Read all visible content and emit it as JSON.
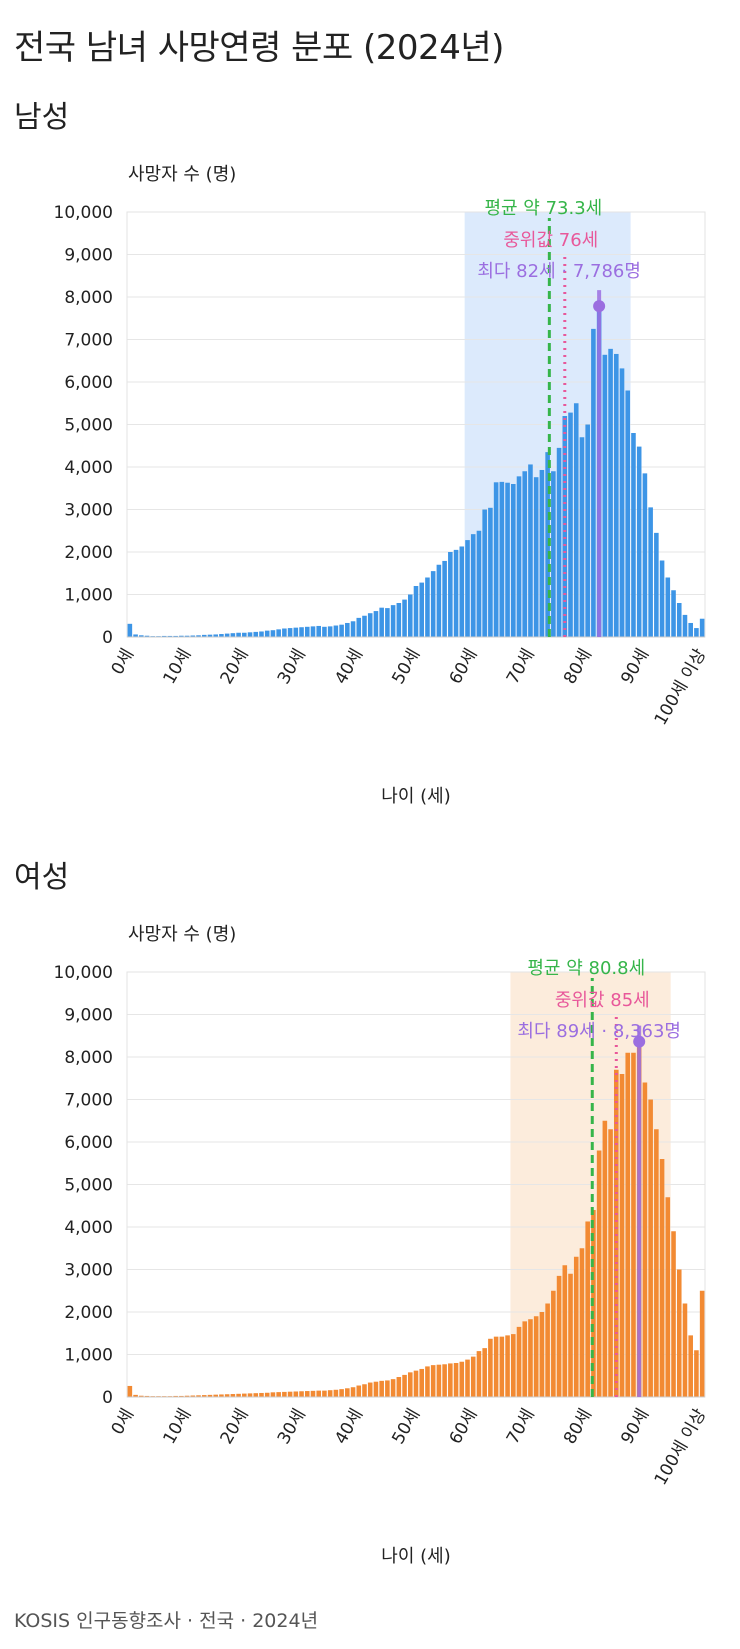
{
  "page": {
    "title": "전국 남녀 사망연령 분포 (2024년)",
    "footer": "KOSIS 인구동향조사 · 전국 · 2024년"
  },
  "chart_data": [
    {
      "id": "male",
      "type": "bar",
      "title": "남성",
      "xlabel": "나이 (세)",
      "ylabel": "사망자 수 (명)",
      "ylim": [
        0,
        10000
      ],
      "yticks": [
        0,
        1000,
        2000,
        3000,
        4000,
        5000,
        6000,
        7000,
        8000,
        9000,
        10000
      ],
      "ytick_labels": [
        "0",
        "1,000",
        "2,000",
        "3,000",
        "4,000",
        "5,000",
        "6,000",
        "7,000",
        "8,000",
        "9,000",
        "10,000"
      ],
      "xtick_positions": [
        0,
        10,
        20,
        30,
        40,
        50,
        60,
        70,
        80,
        90,
        100
      ],
      "xtick_labels": [
        "0세",
        "10세",
        "20세",
        "30세",
        "40세",
        "50세",
        "60세",
        "70세",
        "80세",
        "90세",
        "100세 이상"
      ],
      "grid": true,
      "bar_color": "#3d95e6",
      "highlight_band": {
        "from": 59,
        "to": 88,
        "color": "#dceafc"
      },
      "values": [
        310,
        60,
        40,
        30,
        20,
        20,
        25,
        25,
        25,
        30,
        30,
        35,
        40,
        50,
        55,
        60,
        70,
        80,
        90,
        100,
        100,
        110,
        120,
        130,
        150,
        160,
        180,
        200,
        210,
        220,
        230,
        240,
        250,
        260,
        240,
        250,
        270,
        290,
        330,
        370,
        450,
        500,
        560,
        610,
        690,
        680,
        750,
        800,
        880,
        1000,
        1200,
        1280,
        1400,
        1550,
        1700,
        1790,
        2000,
        2050,
        2130,
        2280,
        2420,
        2500,
        3000,
        3040,
        3640,
        3650,
        3630,
        3600,
        3780,
        3900,
        4060,
        3760,
        3930,
        4350,
        3900,
        4450,
        5200,
        5280,
        5500,
        4700,
        5000,
        7250,
        7786,
        6640,
        6780,
        6660,
        6320,
        5800,
        4800,
        4480,
        3850,
        3050,
        2450,
        1800,
        1400,
        1100,
        800,
        520,
        330,
        210,
        430
      ],
      "annotations": {
        "mean": {
          "value": 73.3,
          "label": "평균 약 73.3세",
          "color": "#36b54a"
        },
        "median": {
          "value": 76,
          "label": "중위값 76세",
          "color": "#e8589a"
        },
        "mode": {
          "value": 82,
          "count": 7786,
          "label": "최다 82세 · 7,786명",
          "color": "#9b6ee0"
        }
      }
    },
    {
      "id": "female",
      "type": "bar",
      "title": "여성",
      "xlabel": "나이 (세)",
      "ylabel": "사망자 수 (명)",
      "ylim": [
        0,
        10000
      ],
      "yticks": [
        0,
        1000,
        2000,
        3000,
        4000,
        5000,
        6000,
        7000,
        8000,
        9000,
        10000
      ],
      "ytick_labels": [
        "0",
        "1,000",
        "2,000",
        "3,000",
        "4,000",
        "5,000",
        "6,000",
        "7,000",
        "8,000",
        "9,000",
        "10,000"
      ],
      "xtick_positions": [
        0,
        10,
        20,
        30,
        40,
        50,
        60,
        70,
        80,
        90,
        100
      ],
      "xtick_labels": [
        "0세",
        "10세",
        "20세",
        "30세",
        "40세",
        "50세",
        "60세",
        "70세",
        "80세",
        "90세",
        "100세 이상"
      ],
      "grid": true,
      "bar_color": "#f28a33",
      "highlight_band": {
        "from": 67,
        "to": 95,
        "color": "#fcecdc"
      },
      "values": [
        260,
        50,
        30,
        25,
        20,
        20,
        20,
        20,
        25,
        25,
        30,
        35,
        40,
        45,
        50,
        55,
        60,
        65,
        70,
        75,
        80,
        85,
        90,
        95,
        100,
        110,
        115,
        120,
        125,
        130,
        135,
        140,
        145,
        150,
        150,
        160,
        170,
        185,
        205,
        230,
        270,
        300,
        340,
        360,
        380,
        390,
        420,
        470,
        520,
        580,
        620,
        660,
        720,
        750,
        760,
        770,
        790,
        800,
        830,
        880,
        950,
        1080,
        1150,
        1370,
        1420,
        1420,
        1450,
        1480,
        1650,
        1780,
        1830,
        1900,
        2000,
        2200,
        2500,
        2850,
        3100,
        2900,
        3300,
        3500,
        4130,
        4400,
        5800,
        6500,
        6300,
        7700,
        7600,
        8100,
        8100,
        8363,
        7400,
        7000,
        6300,
        5600,
        4700,
        3900,
        3000,
        2200,
        1450,
        1100,
        2500
      ],
      "annotations": {
        "mean": {
          "value": 80.8,
          "label": "평균 약 80.8세",
          "color": "#36b54a"
        },
        "median": {
          "value": 85,
          "label": "중위값 85세",
          "color": "#e8589a"
        },
        "mode": {
          "value": 89,
          "count": 8363,
          "label": "최다 89세 · 8,363명",
          "color": "#9b6ee0"
        }
      }
    }
  ]
}
